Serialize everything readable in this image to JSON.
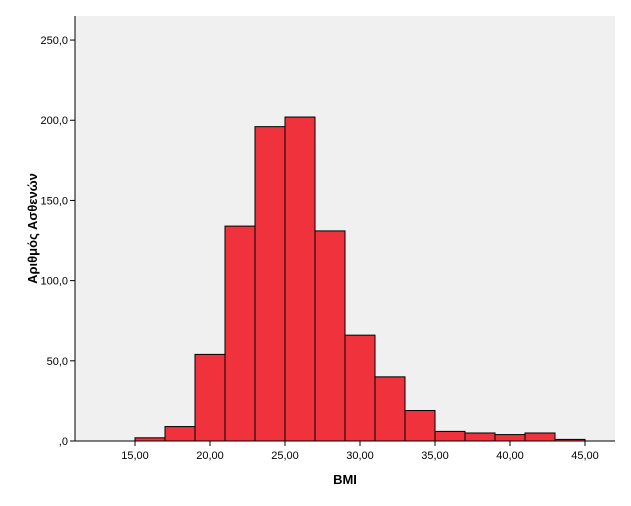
{
  "chart_data": {
    "type": "bar",
    "title": "",
    "xlabel": "BMI",
    "ylabel": "Αριθμός Ασθενών",
    "bins": [
      {
        "x0": 15,
        "x1": 17,
        "value": 2
      },
      {
        "x0": 17,
        "x1": 19,
        "value": 9
      },
      {
        "x0": 19,
        "x1": 21,
        "value": 54
      },
      {
        "x0": 21,
        "x1": 23,
        "value": 134
      },
      {
        "x0": 23,
        "x1": 25,
        "value": 196
      },
      {
        "x0": 25,
        "x1": 27,
        "value": 202
      },
      {
        "x0": 27,
        "x1": 29,
        "value": 131
      },
      {
        "x0": 29,
        "x1": 31,
        "value": 66
      },
      {
        "x0": 31,
        "x1": 33,
        "value": 40
      },
      {
        "x0": 33,
        "x1": 35,
        "value": 19
      },
      {
        "x0": 35,
        "x1": 37,
        "value": 6
      },
      {
        "x0": 37,
        "x1": 39,
        "value": 5
      },
      {
        "x0": 39,
        "x1": 41,
        "value": 4
      },
      {
        "x0": 41,
        "x1": 43,
        "value": 5
      },
      {
        "x0": 43,
        "x1": 45,
        "value": 1
      }
    ],
    "xlim": [
      11,
      47
    ],
    "ylim": [
      0,
      265
    ],
    "x_ticks": [
      {
        "value": 15,
        "label": "15,00"
      },
      {
        "value": 20,
        "label": "20,00"
      },
      {
        "value": 25,
        "label": "25,00"
      },
      {
        "value": 30,
        "label": "30,00"
      },
      {
        "value": 35,
        "label": "35,00"
      },
      {
        "value": 40,
        "label": "40,00"
      },
      {
        "value": 45,
        "label": "45,00"
      }
    ],
    "y_ticks": [
      {
        "value": 0,
        "label": ",0"
      },
      {
        "value": 50,
        "label": "50,0"
      },
      {
        "value": 100,
        "label": "100,0"
      },
      {
        "value": 150,
        "label": "150,0"
      },
      {
        "value": 200,
        "label": "200,0"
      },
      {
        "value": 250,
        "label": "250,0"
      }
    ],
    "grid": false,
    "colors": {
      "bar_fill": "#f0323c",
      "bar_stroke": "#000000",
      "plot_background": "#f0f0f0",
      "axis": "#000000"
    }
  }
}
